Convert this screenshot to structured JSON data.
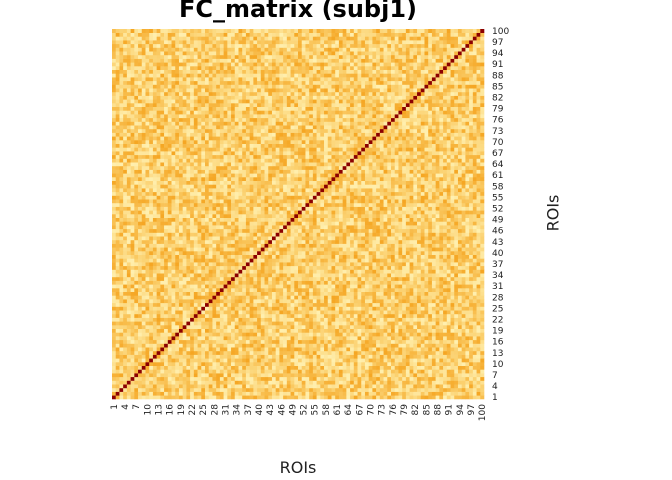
{
  "chart_data": {
    "type": "heatmap",
    "title": "FC_matrix (subj1)",
    "xlabel": "ROIs",
    "ylabel": "ROIs",
    "n_rois": 100,
    "x_tick_labels": [
      "1",
      "4",
      "7",
      "10",
      "13",
      "16",
      "19",
      "22",
      "25",
      "28",
      "31",
      "34",
      "37",
      "40",
      "43",
      "46",
      "49",
      "52",
      "55",
      "58",
      "61",
      "64",
      "67",
      "70",
      "73",
      "76",
      "79",
      "82",
      "85",
      "88",
      "91",
      "94",
      "97",
      "100"
    ],
    "y_tick_labels": [
      "1",
      "4",
      "7",
      "10",
      "13",
      "16",
      "19",
      "22",
      "25",
      "28",
      "31",
      "34",
      "37",
      "40",
      "43",
      "46",
      "49",
      "52",
      "55",
      "58",
      "61",
      "64",
      "67",
      "70",
      "73",
      "76",
      "79",
      "82",
      "85",
      "88",
      "91",
      "94",
      "97",
      "100"
    ],
    "diagonal_value": 1.0,
    "off_diagonal_range": [
      0.0,
      0.5
    ],
    "colormap": "YlOrRd",
    "colors": {
      "low": "#fff0b0",
      "mid": "#fbd06e",
      "high": "#f5a623",
      "diagonal": "#8b0000"
    },
    "legend": "none",
    "grid": false
  }
}
